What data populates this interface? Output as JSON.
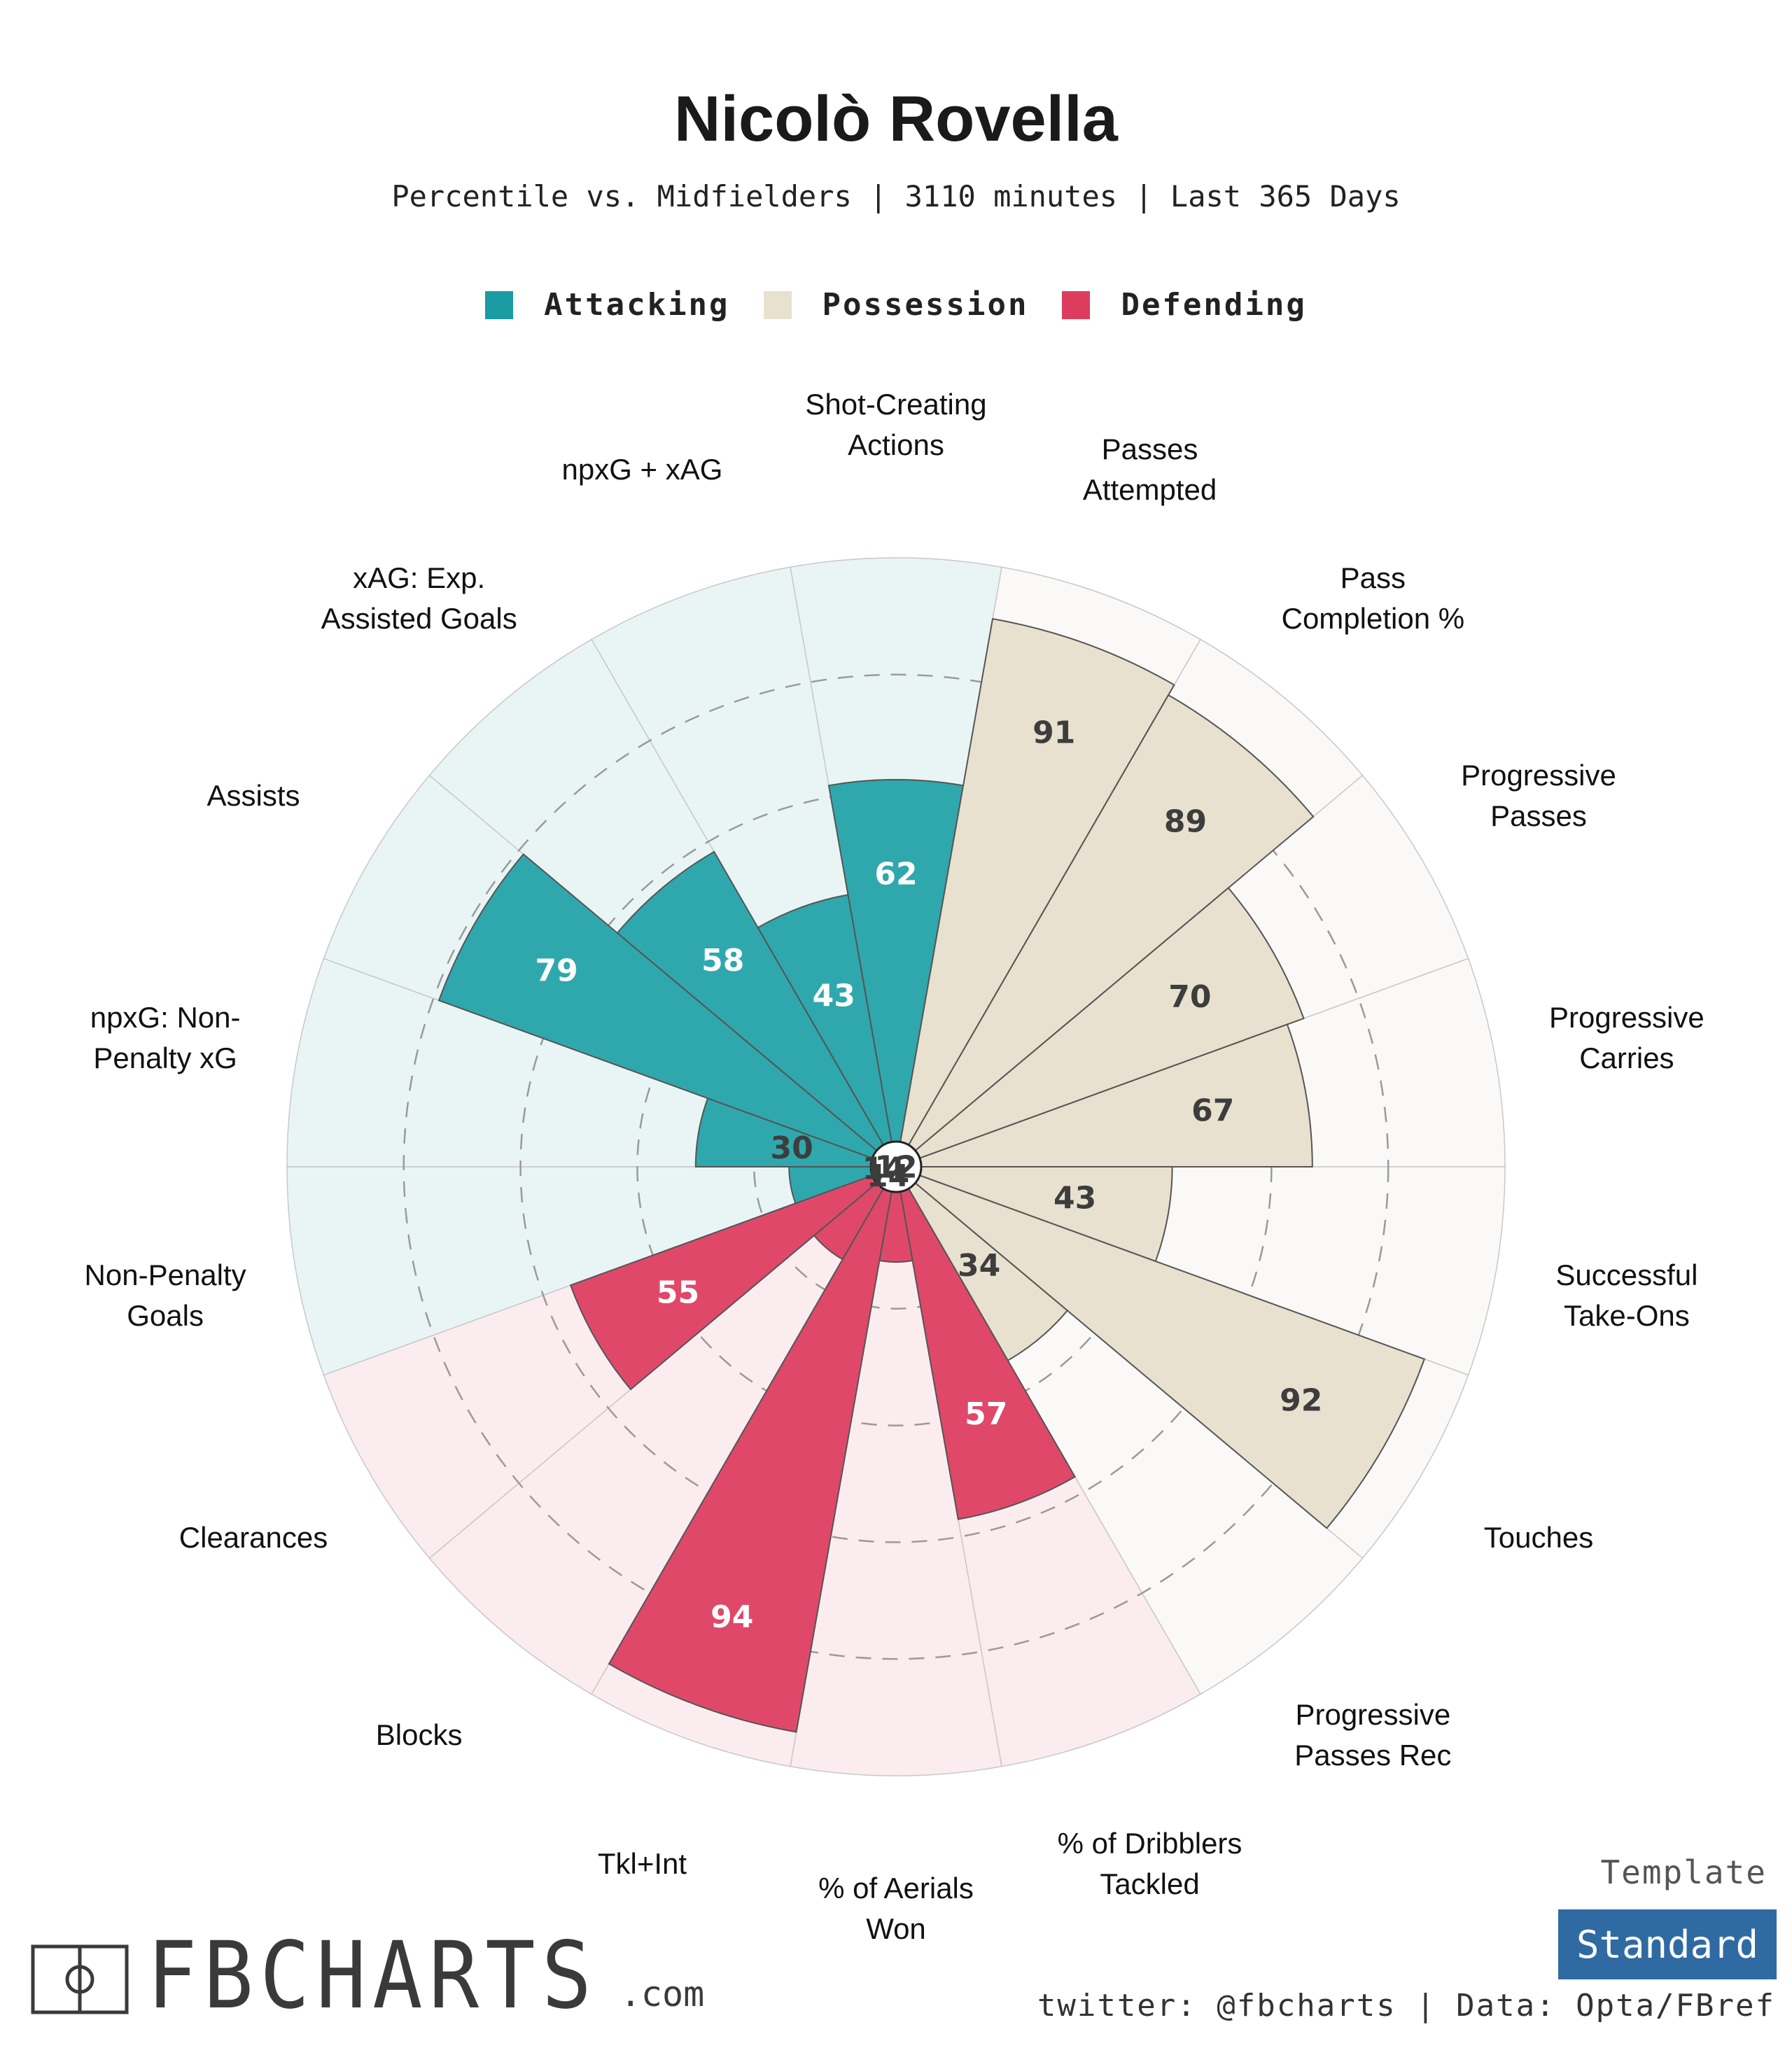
{
  "header": {
    "title": "Nicolò Rovella",
    "subtitle": "Percentile vs. Midfielders | 3110 minutes | Last 365 Days"
  },
  "legend": [
    {
      "label": "Attacking",
      "color": "#1a9ba1"
    },
    {
      "label": "Possession",
      "color": "#e8e1cf"
    },
    {
      "label": "Defending",
      "color": "#dc3d5f"
    }
  ],
  "colors": {
    "attacking": "#2fa8ad",
    "attacking_bg": "#e9f5f5",
    "possession": "#e8e1cf",
    "possession_bg": "#faf9f7",
    "defending": "#e0486a",
    "defending_bg": "#fbecef"
  },
  "chart_data": {
    "type": "radar-bar",
    "title": "Nicolò Rovella",
    "subtitle": "Percentile vs. Midfielders | 3110 minutes | Last 365 Days",
    "rlim": [
      0,
      100
    ],
    "gridlines": [
      20,
      40,
      60,
      80
    ],
    "categories": [
      "Shot-Creating Actions",
      "Passes Attempted",
      "Pass Completion %",
      "Progressive Passes",
      "Progressive Carries",
      "Successful Take-Ons",
      "Touches",
      "Progressive Passes Rec",
      "% of Dribblers Tackled",
      "% of Aerials Won",
      "Tkl+Int",
      "Blocks",
      "Clearances",
      "Non-Penalty Goals",
      "npxG: Non-Penalty xG",
      "Assists",
      "xAG: Exp. Assisted Goals",
      "npxG + xAG"
    ],
    "label_lines": [
      [
        "Shot-Creating",
        "Actions"
      ],
      [
        "Passes",
        "Attempted"
      ],
      [
        "Pass",
        "Completion %"
      ],
      [
        "Progressive",
        "Passes"
      ],
      [
        "Progressive",
        "Carries"
      ],
      [
        "Successful",
        "Take-Ons"
      ],
      [
        "Touches"
      ],
      [
        "Progressive",
        "Passes Rec"
      ],
      [
        "% of Dribblers",
        "Tackled"
      ],
      [
        "% of Aerials",
        "Won"
      ],
      [
        "Tkl+Int"
      ],
      [
        "Blocks"
      ],
      [
        "Clearances"
      ],
      [
        "Non-Penalty",
        "Goals"
      ],
      [
        "npxG: Non-",
        "Penalty xG"
      ],
      [
        "Assists"
      ],
      [
        "xAG: Exp.",
        "Assisted Goals"
      ],
      [
        "npxG + xAG"
      ]
    ],
    "groups": [
      "attacking",
      "possession",
      "possession",
      "possession",
      "possession",
      "possession",
      "possession",
      "possession",
      "defending",
      "defending",
      "defending",
      "defending",
      "defending",
      "attacking",
      "attacking",
      "attacking",
      "attacking",
      "attacking"
    ],
    "values": [
      62,
      91,
      89,
      70,
      67,
      43,
      92,
      34,
      57,
      12,
      94,
      14,
      55,
      14,
      30,
      79,
      58,
      43
    ]
  },
  "footer": {
    "template_label": "Template",
    "template_value": "Standard",
    "credit": "twitter: @fbcharts | Data: Opta/FBref",
    "brand_name": "FBCHARTS",
    "brand_suffix": ".com"
  }
}
